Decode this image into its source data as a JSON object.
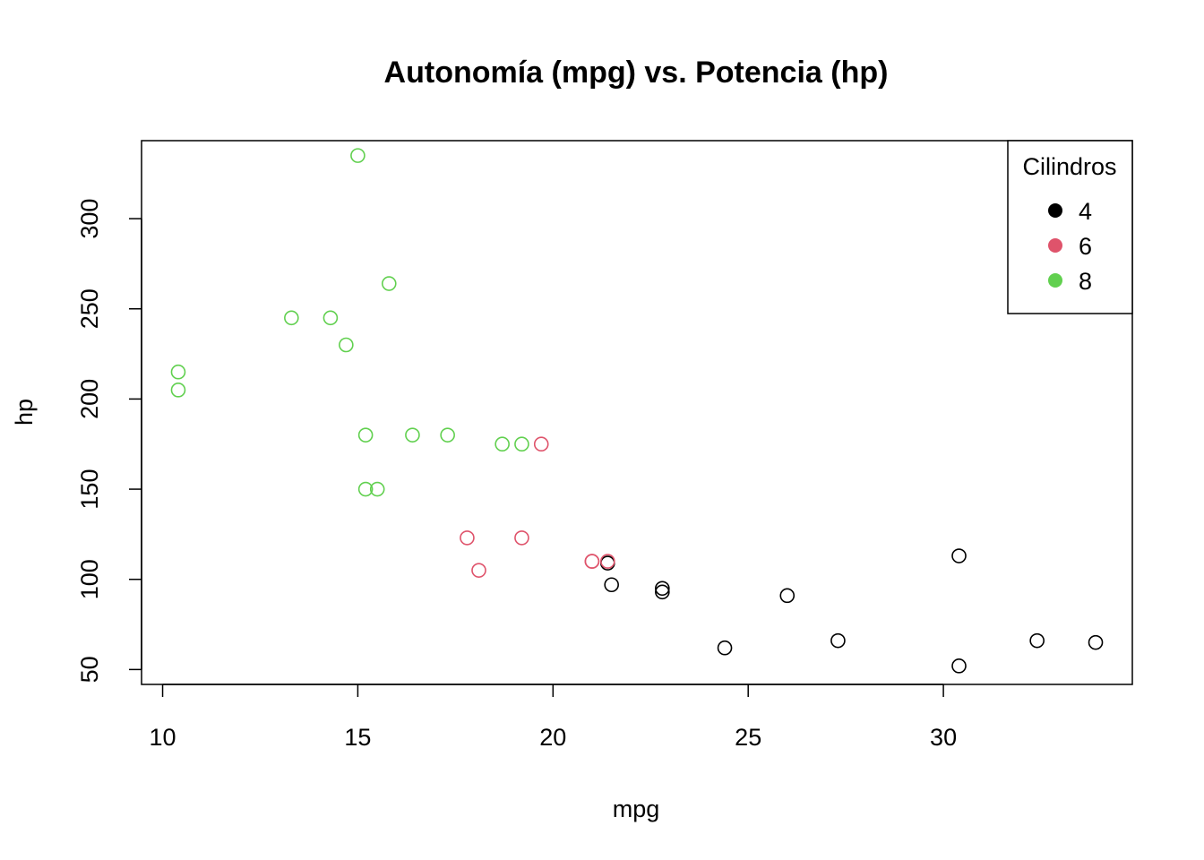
{
  "chart_data": {
    "type": "scatter",
    "title": "Autonomía (mpg) vs. Potencia (hp)",
    "xlabel": "mpg",
    "ylabel": "hp",
    "xlim": [
      9.46,
      34.84
    ],
    "ylim": [
      41.74,
      343.26
    ],
    "x_ticks": [
      10,
      15,
      20,
      25,
      30
    ],
    "y_ticks": [
      50,
      100,
      150,
      200,
      250,
      300
    ],
    "grid": false,
    "legend": {
      "title": "Cilindros",
      "position": "top-right",
      "entries": [
        {
          "label": "4",
          "color": "#000000"
        },
        {
          "label": "6",
          "color": "#DF536B"
        },
        {
          "label": "8",
          "color": "#61D04F"
        }
      ]
    },
    "series": [
      {
        "name": "4",
        "color": "#000000",
        "points": [
          {
            "x": 22.8,
            "y": 93
          },
          {
            "x": 24.4,
            "y": 62
          },
          {
            "x": 22.8,
            "y": 95
          },
          {
            "x": 32.4,
            "y": 66
          },
          {
            "x": 30.4,
            "y": 52
          },
          {
            "x": 33.9,
            "y": 65
          },
          {
            "x": 21.5,
            "y": 97
          },
          {
            "x": 27.3,
            "y": 66
          },
          {
            "x": 26.0,
            "y": 91
          },
          {
            "x": 30.4,
            "y": 113
          },
          {
            "x": 21.4,
            "y": 109
          }
        ]
      },
      {
        "name": "6",
        "color": "#DF536B",
        "points": [
          {
            "x": 21.0,
            "y": 110
          },
          {
            "x": 21.0,
            "y": 110
          },
          {
            "x": 21.4,
            "y": 110
          },
          {
            "x": 18.1,
            "y": 105
          },
          {
            "x": 19.2,
            "y": 123
          },
          {
            "x": 17.8,
            "y": 123
          },
          {
            "x": 19.7,
            "y": 175
          }
        ]
      },
      {
        "name": "8",
        "color": "#61D04F",
        "points": [
          {
            "x": 18.7,
            "y": 175
          },
          {
            "x": 14.3,
            "y": 245
          },
          {
            "x": 16.4,
            "y": 180
          },
          {
            "x": 17.3,
            "y": 180
          },
          {
            "x": 15.2,
            "y": 180
          },
          {
            "x": 10.4,
            "y": 205
          },
          {
            "x": 10.4,
            "y": 215
          },
          {
            "x": 14.7,
            "y": 230
          },
          {
            "x": 15.5,
            "y": 150
          },
          {
            "x": 15.2,
            "y": 150
          },
          {
            "x": 13.3,
            "y": 245
          },
          {
            "x": 19.2,
            "y": 175
          },
          {
            "x": 15.8,
            "y": 264
          },
          {
            "x": 15.0,
            "y": 335
          }
        ]
      }
    ]
  }
}
